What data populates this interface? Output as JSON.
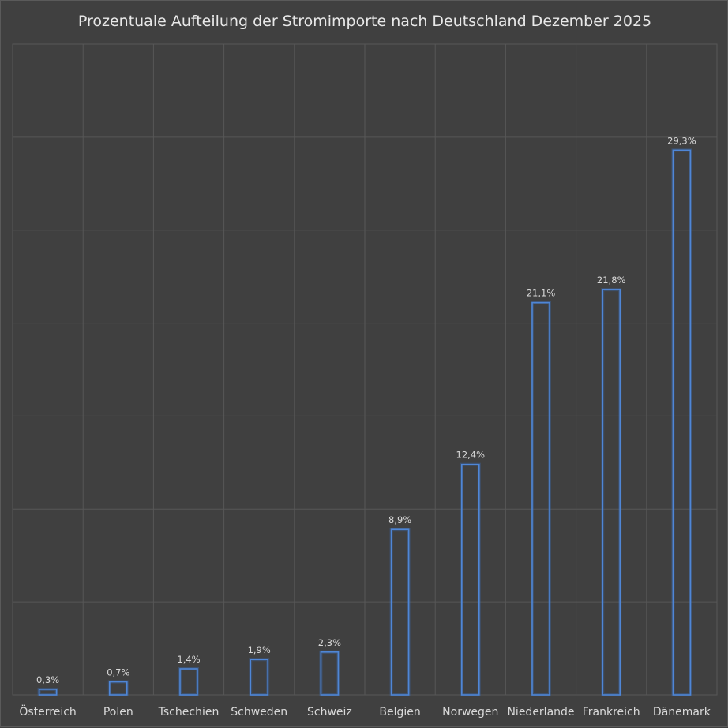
{
  "chart_data": {
    "type": "bar",
    "title": "Prozentuale Aufteilung der Stromimporte nach Deutschland Dezember 2025",
    "categories": [
      "Österreich",
      "Polen",
      "Tschechien",
      "Schweden",
      "Schweiz",
      "Belgien",
      "Norwegen",
      "Niederlande",
      "Frankreich",
      "Dänemark"
    ],
    "values": [
      0.3,
      0.7,
      1.4,
      1.9,
      2.3,
      8.9,
      12.4,
      21.1,
      21.8,
      29.3
    ],
    "data_labels": [
      "0,3%",
      "0,7%",
      "1,4%",
      "1,9%",
      "2,3%",
      "8,9%",
      "12,4%",
      "21,1%",
      "21,8%",
      "29,3%"
    ],
    "xlabel": "",
    "ylabel": "",
    "ylim": [
      0,
      35
    ],
    "grid": true,
    "legend": "none",
    "colors": {
      "background": "#404040",
      "grid": "#575757",
      "bar_outline": "#4f86d6",
      "text": "#d9d9d9"
    }
  }
}
